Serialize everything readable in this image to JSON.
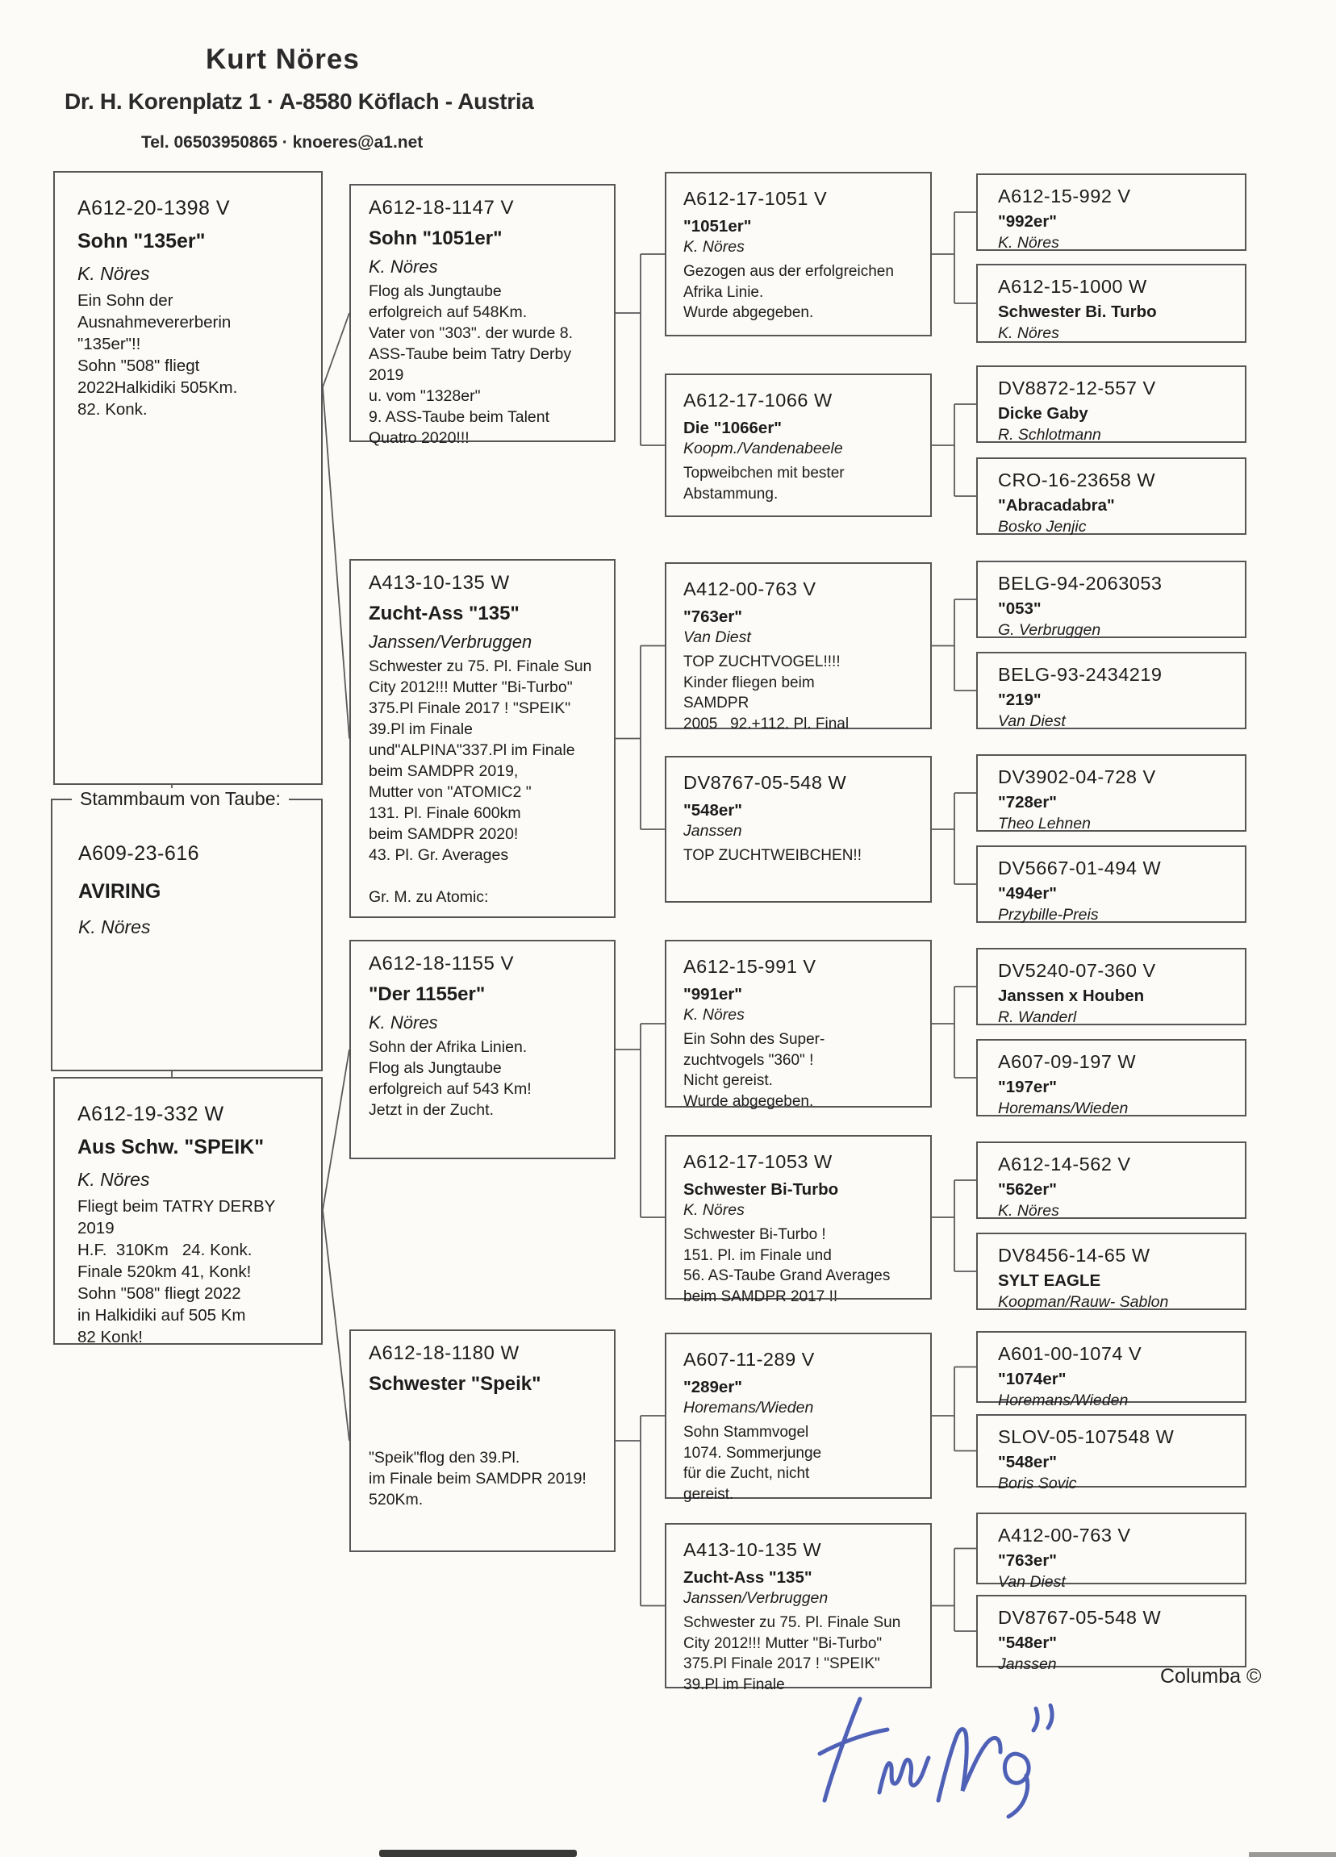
{
  "header": {
    "name": "Kurt Nöres",
    "address": "Dr. H. Korenplatz 1  ·  A-8580 Köflach - Austria",
    "contact": "Tel.  06503950865  ·  knoeres@a1.net"
  },
  "subject_panel": {
    "legend": "Stammbaum von Taube:",
    "ring": "A609-23-616",
    "name": "AVIRING",
    "breeder": "K. Nöres"
  },
  "columns": [
    {
      "generation": 1,
      "boxes": [
        {
          "ring": "A612-20-1398 V",
          "name": "Sohn \"135er\"",
          "breeder": "K. Nöres",
          "notes": "Ein Sohn der\nAusnahmevererberin\n\"135er\"!!\nSohn \"508\" fliegt\n2022Halkidiki 505Km.\n82. Konk."
        },
        {
          "ring": "A612-19-332 W",
          "name": "Aus Schw. \"SPEIK\"",
          "breeder": "K. Nöres",
          "notes": "Fliegt beim TATRY DERBY\n2019\nH.F.  310Km   24. Konk.\nFinale 520km 41, Konk!\nSohn \"508\" fliegt 2022\nin Halkidiki auf 505 Km\n82 Konk!"
        }
      ]
    },
    {
      "generation": 2,
      "boxes": [
        {
          "ring": "A612-18-1147 V",
          "name": "Sohn \"1051er\"",
          "breeder": "K. Nöres",
          "notes": "Flog als Jungtaube\nerfolgreich auf 548Km.\nVater von \"303\". der wurde 8.\nASS-Taube beim Tatry Derby\n2019\nu. vom \"1328er\"\n9. ASS-Taube beim Talent\nQuatro 2020!!!"
        },
        {
          "ring": "A413-10-135 W",
          "name": "Zucht-Ass \"135\"",
          "breeder": "Janssen/Verbruggen",
          "notes": "Schwester zu 75. Pl. Finale Sun\nCity 2012!!! Mutter \"Bi-Turbo\"\n375.Pl Finale 2017 ! \"SPEIK\"\n39.Pl im Finale\nund\"ALPINA\"337.Pl im Finale\nbeim SAMDPR 2019,\nMutter von \"ATOMIC2 \"\n131. Pl. Finale 600km\nbeim SAMDPR 2020!\n43. Pl. Gr. Averages\n\nGr. M. zu Atomic:"
        },
        {
          "ring": "A612-18-1155 V",
          "name": "\"Der 1155er\"",
          "breeder": "K. Nöres",
          "notes": "Sohn der Afrika Linien.\nFlog als Jungtaube\nerfolgreich auf 543 Km!\nJetzt in der Zucht."
        },
        {
          "ring": "A612-18-1180 W",
          "name": "Schwester \"Speik\"",
          "breeder": "",
          "notes": "\n\"Speik\"flog den 39.Pl.\nim Finale beim SAMDPR 2019!\n520Km."
        }
      ]
    },
    {
      "generation": 3,
      "boxes": [
        {
          "ring": "A612-17-1051 V",
          "name": "\"1051er\"",
          "breeder": "K. Nöres",
          "notes": "Gezogen aus der erfolgreichen\nAfrika Linie.\nWurde abgegeben."
        },
        {
          "ring": "A612-17-1066 W",
          "name": "Die \"1066er\"",
          "breeder": "Koopm./Vandenabeele",
          "notes": "Topweibchen mit bester\nAbstammung."
        },
        {
          "ring": "A412-00-763 V",
          "name": "\"763er\"",
          "breeder": "Van Diest",
          "notes": "TOP ZUCHTVOGEL!!!!\nKinder fliegen beim\nSAMDPR\n2005   92.+112. Pl. Final"
        },
        {
          "ring": "DV8767-05-548 W",
          "name": "\"548er\"",
          "breeder": "Janssen",
          "notes": "TOP ZUCHTWEIBCHEN!!"
        },
        {
          "ring": "A612-15-991 V",
          "name": "\"991er\"",
          "breeder": "K. Nöres",
          "notes": "Ein Sohn des Super-\nzuchtvogels \"360\" !\nNicht gereist.\nWurde abgegeben."
        },
        {
          "ring": "A612-17-1053 W",
          "name": "Schwester Bi-Turbo",
          "breeder": "K. Nöres",
          "notes": "Schwester Bi-Turbo !\n151. Pl. im Finale und\n56. AS-Taube Grand Averages\nbeim SAMDPR 2017 !!"
        },
        {
          "ring": "A607-11-289 V",
          "name": "\"289er\"",
          "breeder": "Horemans/Wieden",
          "notes": "Sohn Stammvogel\n1074. Sommerjunge\nfür die Zucht, nicht\ngereist."
        },
        {
          "ring": "A413-10-135 W",
          "name": "Zucht-Ass \"135\"",
          "breeder": "Janssen/Verbruggen",
          "notes": "Schwester zu 75. Pl. Finale Sun\nCity 2012!!! Mutter \"Bi-Turbo\"\n375.Pl Finale 2017 ! \"SPEIK\"\n39.Pl im Finale"
        }
      ]
    },
    {
      "generation": 4,
      "boxes": [
        {
          "ring": "A612-15-992 V",
          "name": "\"992er\"",
          "breeder": "K. Nöres"
        },
        {
          "ring": "A612-15-1000 W",
          "name": "Schwester Bi. Turbo",
          "breeder": "K. Nöres"
        },
        {
          "ring": "DV8872-12-557 V",
          "name": "Dicke Gaby",
          "breeder": "R. Schlotmann"
        },
        {
          "ring": "CRO-16-23658 W",
          "name": "\"Abracadabra\"",
          "breeder": "Bosko Jenjic"
        },
        {
          "ring": "BELG-94-2063053",
          "name": "\"053\"",
          "breeder": "G. Verbruggen"
        },
        {
          "ring": "BELG-93-2434219",
          "name": "\"219\"",
          "breeder": "Van Diest"
        },
        {
          "ring": "DV3902-04-728 V",
          "name": "\"728er\"",
          "breeder": "Theo Lehnen"
        },
        {
          "ring": "DV5667-01-494 W",
          "name": "\"494er\"",
          "breeder": "Przybille-Preis"
        },
        {
          "ring": "DV5240-07-360 V",
          "name": "Janssen x Houben",
          "breeder": "R. Wanderl"
        },
        {
          "ring": "A607-09-197 W",
          "name": "\"197er\"",
          "breeder": "Horemans/Wieden"
        },
        {
          "ring": "A612-14-562 V",
          "name": "\"562er\"",
          "breeder": "K. Nöres"
        },
        {
          "ring": "DV8456-14-65 W",
          "name": "SYLT EAGLE",
          "breeder": "Koopman/Rauw- Sablon"
        },
        {
          "ring": "A601-00-1074 V",
          "name": "\"1074er\"",
          "breeder": "Horemans/Wieden"
        },
        {
          "ring": "SLOV-05-107548 W",
          "name": "\"548er\"",
          "breeder": "Boris Sovic"
        },
        {
          "ring": "A412-00-763 V",
          "name": "\"763er\"",
          "breeder": "Van Diest"
        },
        {
          "ring": "DV8767-05-548 W",
          "name": "\"548er\"",
          "breeder": "Janssen"
        }
      ]
    }
  ],
  "footer": {
    "brand": "Columba ©",
    "signature_icon": "handwritten-signature-blue"
  },
  "colors": {
    "paper": "#fcfbf8",
    "ink": "#1c1c1c",
    "box_border": "#565656",
    "connector": "#5a5a5a",
    "signature_ink": "#3c51b0"
  }
}
